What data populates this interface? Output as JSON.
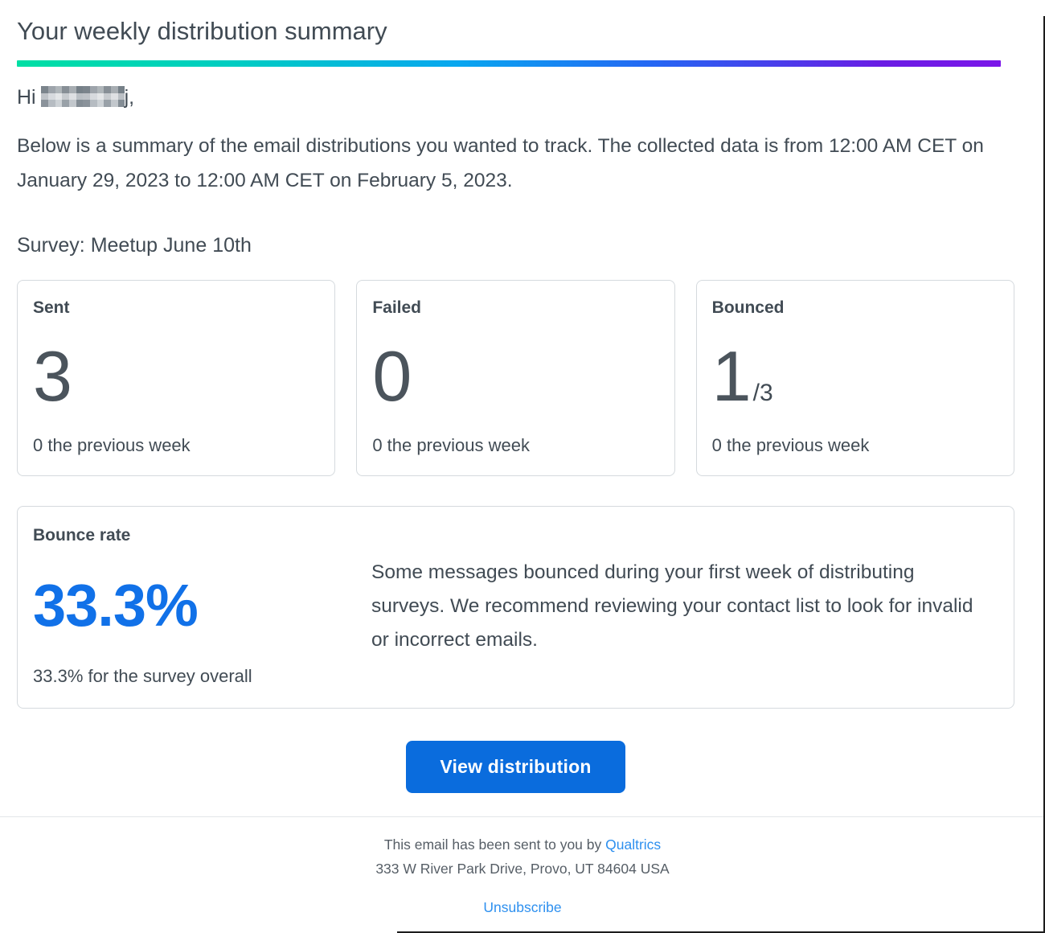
{
  "header": {
    "title": "Your weekly distribution summary"
  },
  "greeting": {
    "prefix": "Hi",
    "suffix": "j,"
  },
  "intro": "Below is a summary of the email distributions you wanted to track. The collected data is from 12:00 AM CET on January 29, 2023 to 12:00 AM CET on February 5, 2023.",
  "survey": {
    "label": "Survey: Meetup June 10th"
  },
  "stats": [
    {
      "label": "Sent",
      "value": "3",
      "total": "",
      "caption": "0 the previous week"
    },
    {
      "label": "Failed",
      "value": "0",
      "total": "",
      "caption": "0 the previous week"
    },
    {
      "label": "Bounced",
      "value": "1",
      "total": "/3",
      "caption": "0 the previous week"
    }
  ],
  "bounce_rate": {
    "label": "Bounce rate",
    "value": "33.3%",
    "caption": "33.3% for the survey overall",
    "message": "Some messages bounced during your first week of distributing surveys. We recommend reviewing your contact list to look for invalid or incorrect emails."
  },
  "cta": {
    "label": "View distribution"
  },
  "footer": {
    "sent_by_text": "This email has been sent to you by ",
    "brand_link": "Qualtrics",
    "address": "333 W River Park Drive, Provo, UT 84604 USA",
    "unsubscribe_label": "Unsubscribe"
  },
  "colors": {
    "accent_button_blue": "#0a6cdd",
    "value_blue": "#1171e8",
    "link_blue": "#2e90ef",
    "text_dark": "#414b54",
    "card_border": "#d5dade",
    "gradient_start": "#00dfa4",
    "gradient_cyan": "#09a6f0",
    "gradient_end": "#7b16e9"
  }
}
